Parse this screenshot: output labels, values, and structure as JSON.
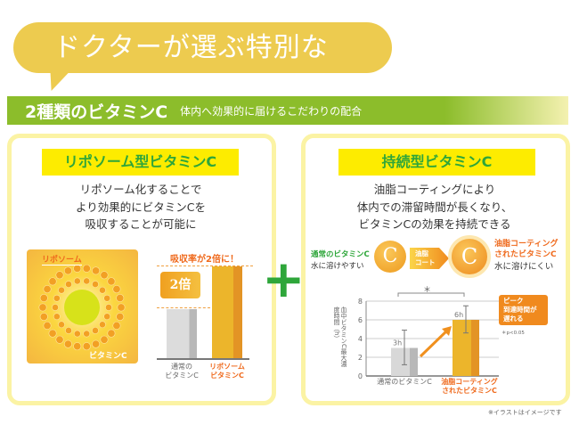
{
  "headline": "ドクターが選ぶ特別な",
  "band": {
    "title": "2種類のビタミンC",
    "subtitle": "体内へ効果的に届けるこだわりの配合"
  },
  "left": {
    "title": "リポソーム型ビタミンC",
    "desc": [
      "リポソーム化することで",
      "より効果的にビタミンCを",
      "吸収することが可能に"
    ],
    "illustration": {
      "label_top": "リポソーム",
      "label_bottom": "ビタミンC"
    },
    "chart": {
      "headline": "吸収率が2倍に！",
      "badge": "2倍",
      "bars": [
        {
          "label1": "通常の",
          "label2": "ビタミンC",
          "value": 1,
          "color": "#d6d6d6"
        },
        {
          "label1": "リポソーム",
          "label2": "ビタミンC",
          "value": 2,
          "color": "#ecb52b"
        }
      ]
    }
  },
  "plus": "+",
  "right": {
    "title": "持続型ビタミンC",
    "desc": [
      "油脂コーティングにより",
      "体内での滞留時間が長くなり、",
      "ビタミンCの効果を持続できる"
    ],
    "normal": {
      "name": "通常のビタミンC",
      "note": "水に溶けやすい",
      "glyph": "C"
    },
    "arrow": [
      "油脂",
      "コート"
    ],
    "coated": {
      "name1": "油脂コーティング",
      "name2": "されたビタミンC",
      "note": "水に溶けにくい",
      "glyph": "C"
    },
    "callout": [
      "ピーク",
      "到達時間が",
      "遅れる"
    ],
    "pnote": "＊p<0.05",
    "sig": "＊"
  },
  "chart_data": {
    "type": "bar",
    "ylabel": "血中ビタミンC最大濃度時間（h）",
    "ylim": [
      0,
      8
    ],
    "yticks": [
      "0",
      "2",
      "4",
      "6",
      "8"
    ],
    "grid": true,
    "categories": [
      "通常のビタミンC",
      "油脂コーティングされたビタミンC"
    ],
    "values": [
      3,
      6
    ],
    "data_labels": [
      "3h",
      "6h"
    ],
    "error": [
      [
        1.2,
        4.9
      ],
      [
        4.6,
        7.5
      ]
    ],
    "colors": [
      "#d8d8d8",
      "#ecb52b"
    ]
  },
  "footnote": "※イラストはイメージです"
}
